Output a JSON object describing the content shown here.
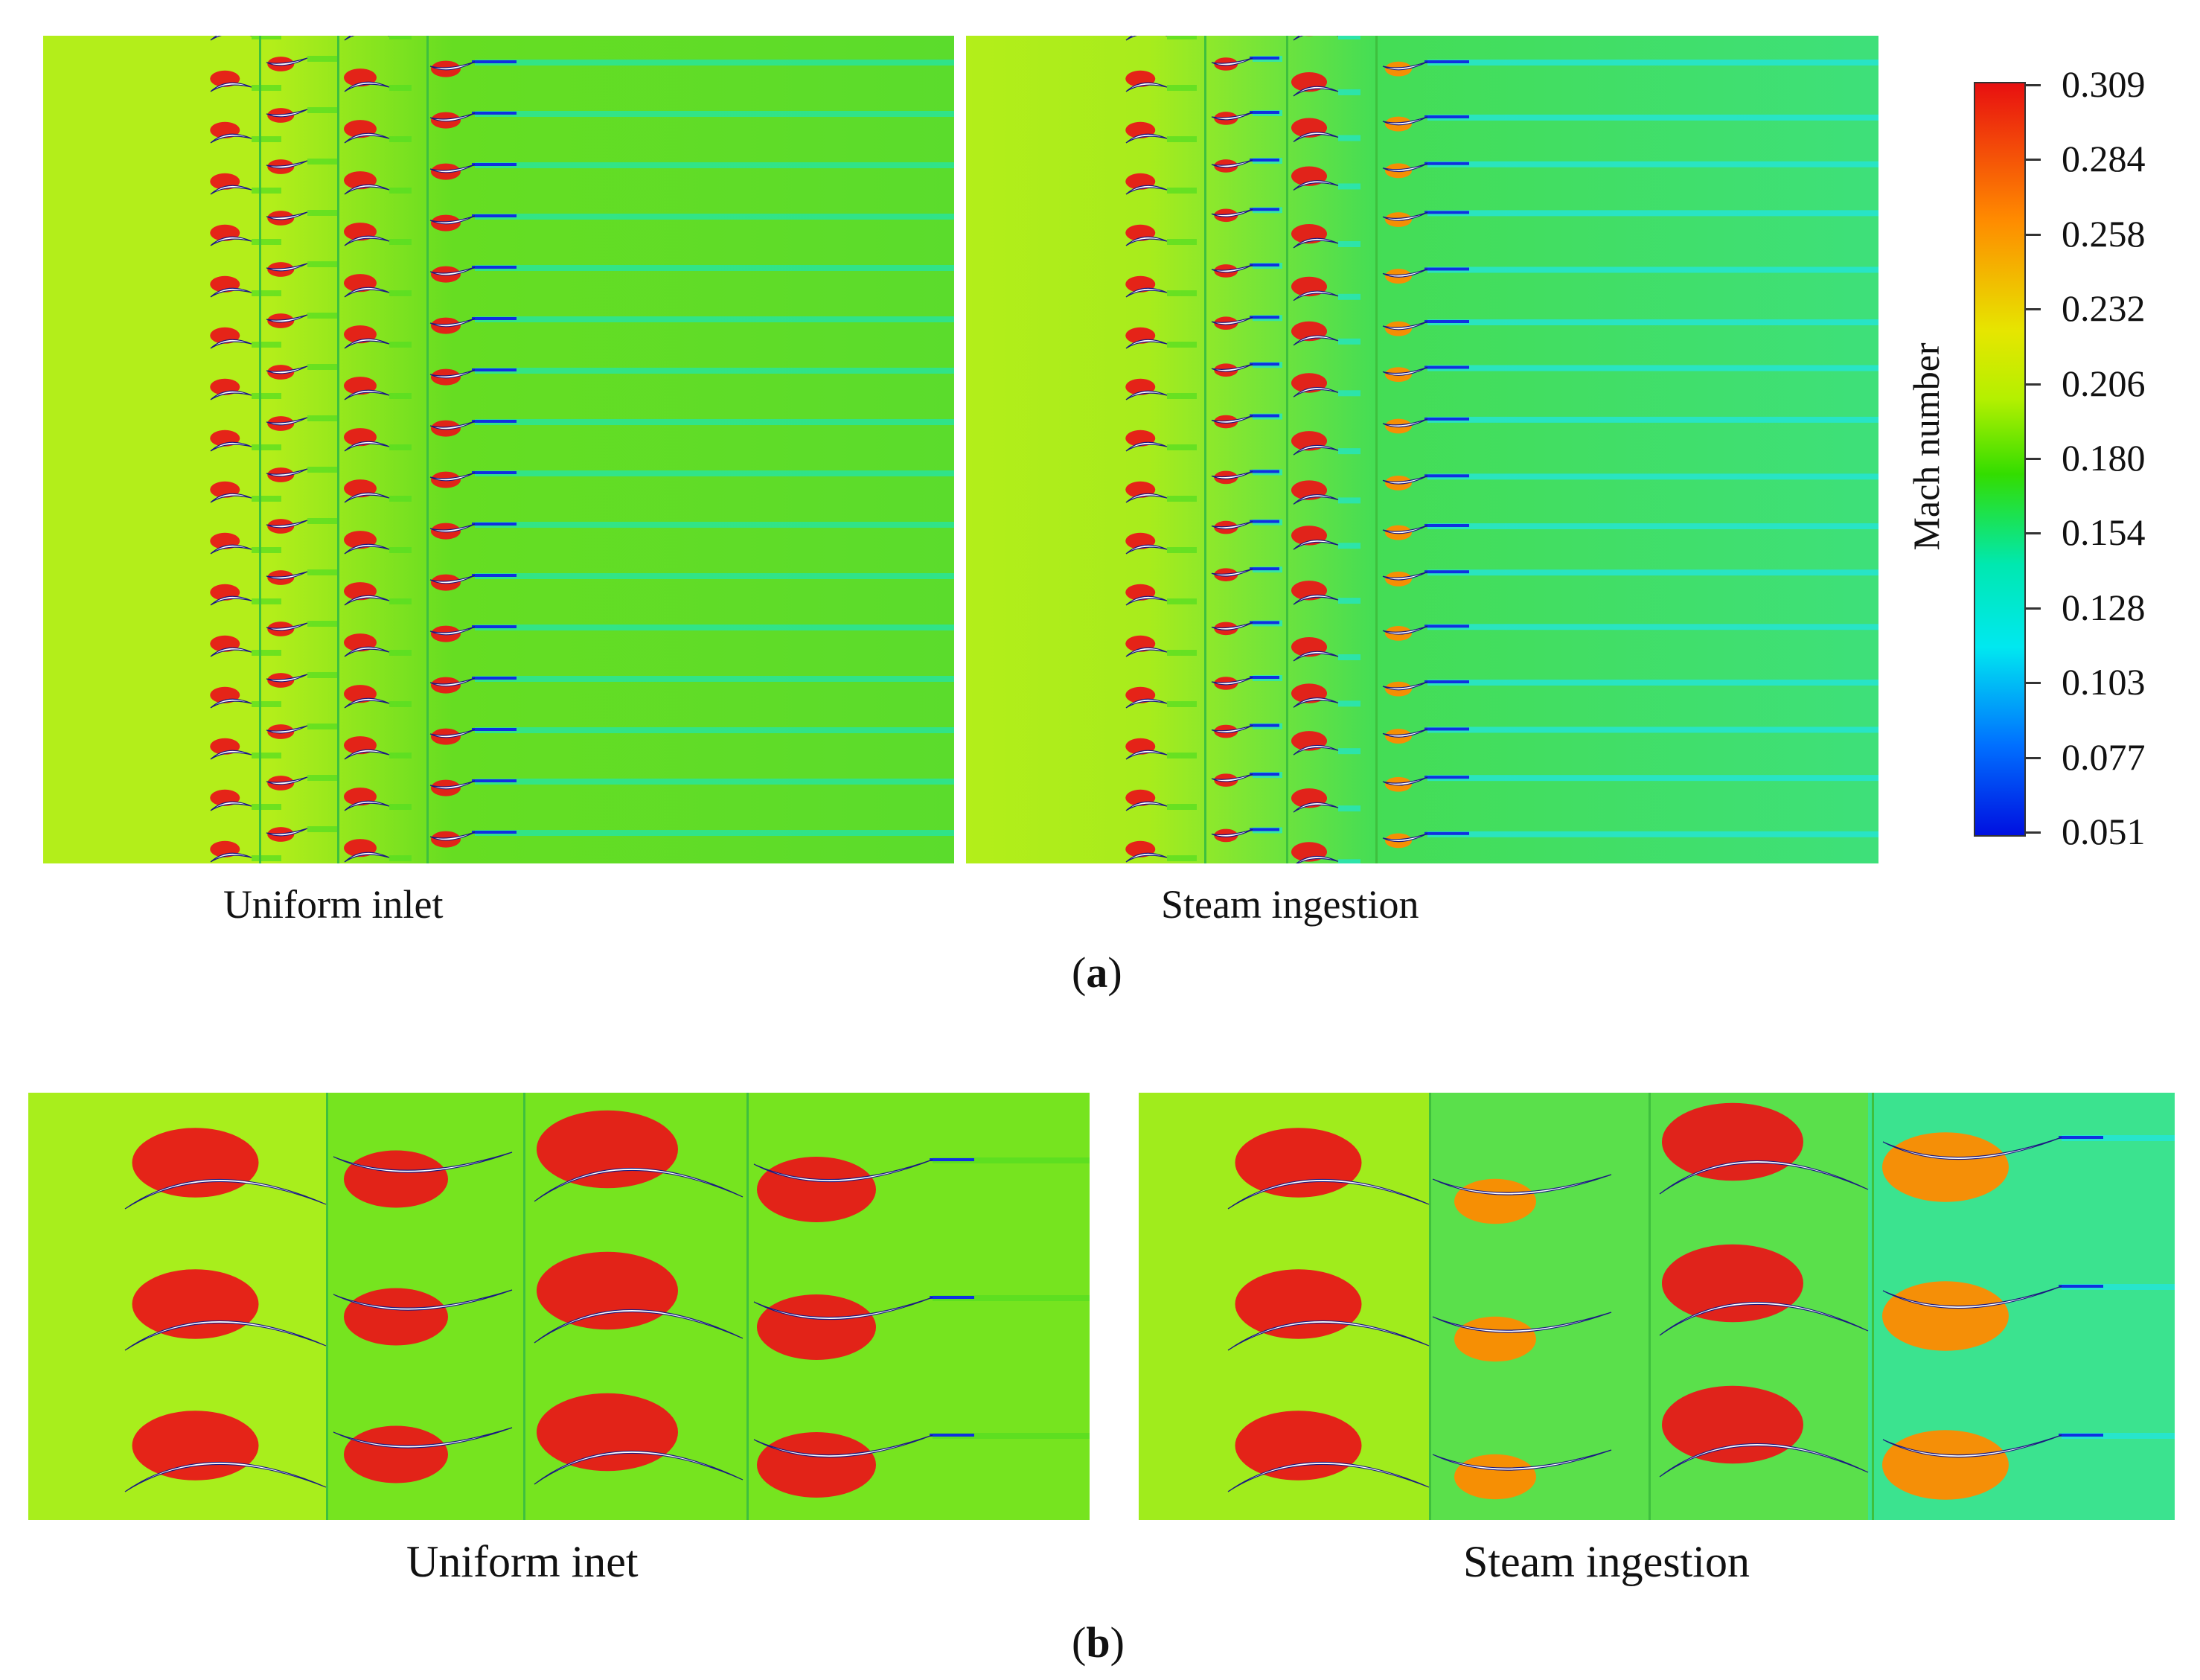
{
  "panel_a": {
    "left_caption": "Uniform inlet",
    "right_caption": "Steam ingestion",
    "label_open": "(",
    "label_letter": "a",
    "label_close": ")"
  },
  "panel_b": {
    "left_caption": "Uniform inet",
    "right_caption": "Steam ingestion",
    "label_open": "(",
    "label_letter": "b",
    "label_close": ")"
  },
  "colorbar": {
    "title": "Mach number",
    "ticks": [
      "0.309",
      "0.284",
      "0.258",
      "0.232",
      "0.206",
      "0.180",
      "0.154",
      "0.128",
      "0.103",
      "0.077",
      "0.051"
    ],
    "colors": {
      "max": "#e81010",
      "orange": "#ff8a00",
      "yellow": "#e6e600",
      "yellow_green": "#b4f000",
      "green": "#33dd00",
      "teal": "#00e8b0",
      "cyan": "#00e8f0",
      "blue": "#0070ff",
      "min": "#0010e0"
    }
  },
  "field_colors": {
    "background": "#b3ee1a",
    "wake_green": "#55dd22",
    "wake_cyan": "#22e6c8",
    "suction_red": "#e81818",
    "blade": "#ffffff",
    "wake_blue": "#1030e0"
  }
}
